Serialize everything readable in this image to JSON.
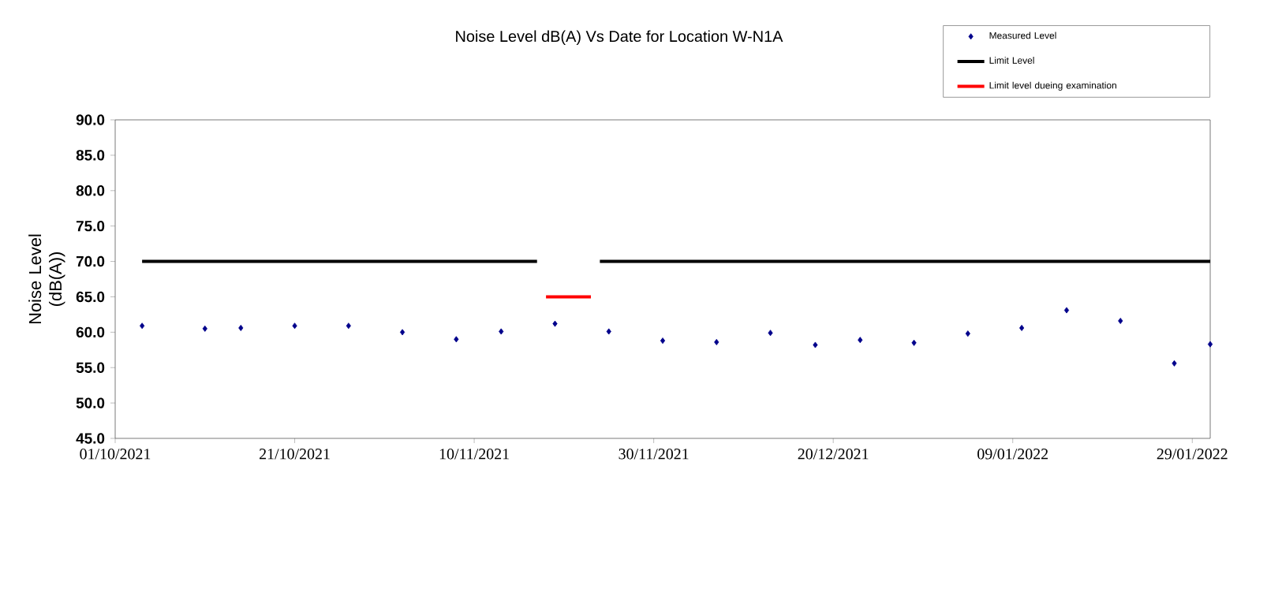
{
  "chart_data": {
    "type": "scatter",
    "title": "Noise Level dB(A) Vs Date for Location W-N1A",
    "ylabel": "Noise Level (dB(A))",
    "xlim": [
      "2021-10-01",
      "2022-01-31"
    ],
    "ylim": [
      45,
      90
    ],
    "xticks": [
      {
        "value": "2021-10-01",
        "label": "01/10/2021"
      },
      {
        "value": "2021-10-21",
        "label": "21/10/2021"
      },
      {
        "value": "2021-11-10",
        "label": "10/11/2021"
      },
      {
        "value": "2021-11-30",
        "label": "30/11/2021"
      },
      {
        "value": "2021-12-20",
        "label": "20/12/2021"
      },
      {
        "value": "2022-01-09",
        "label": "09/01/2022"
      },
      {
        "value": "2022-01-29",
        "label": "29/01/2022"
      }
    ],
    "yticks": [
      {
        "value": 45,
        "label": "45.0"
      },
      {
        "value": 50,
        "label": "50.0"
      },
      {
        "value": 55,
        "label": "55.0"
      },
      {
        "value": 60,
        "label": "60.0"
      },
      {
        "value": 65,
        "label": "65.0"
      },
      {
        "value": 70,
        "label": "70.0"
      },
      {
        "value": 75,
        "label": "75.0"
      },
      {
        "value": 80,
        "label": "80.0"
      },
      {
        "value": 85,
        "label": "85.0"
      },
      {
        "value": 90,
        "label": "90.0"
      }
    ],
    "legend": "top right",
    "grid": false,
    "series": [
      {
        "name": "Measured Level",
        "marker": "diamond",
        "color": "#00008b",
        "x": [
          "2021-10-04",
          "2021-10-11",
          "2021-10-15",
          "2021-10-21",
          "2021-10-27",
          "2021-11-02",
          "2021-11-08",
          "2021-11-13",
          "2021-11-19",
          "2021-11-25",
          "2021-12-01",
          "2021-12-07",
          "2021-12-13",
          "2021-12-18",
          "2021-12-23",
          "2021-12-29",
          "2022-01-04",
          "2022-01-10",
          "2022-01-15",
          "2022-01-21",
          "2022-01-27",
          "2022-01-31"
        ],
        "values": [
          60.9,
          60.5,
          60.6,
          60.9,
          60.9,
          60.0,
          59.0,
          60.1,
          61.2,
          60.1,
          58.8,
          58.6,
          59.9,
          58.2,
          58.9,
          58.5,
          59.8,
          60.6,
          63.1,
          61.6,
          55.6,
          58.3
        ]
      },
      {
        "name": "Limit Level",
        "type": "line",
        "marker": "none",
        "color": "#000000",
        "x": [
          "2021-10-04",
          "2021-11-17",
          null,
          "2021-11-24",
          "2022-01-31"
        ],
        "values": [
          70,
          70,
          null,
          70,
          70
        ]
      },
      {
        "name": "Limit level dueing examination",
        "type": "line",
        "marker": "none",
        "color": "#ff0000",
        "x": [
          "2021-11-18",
          "2021-11-23"
        ],
        "values": [
          65,
          65
        ]
      }
    ]
  }
}
